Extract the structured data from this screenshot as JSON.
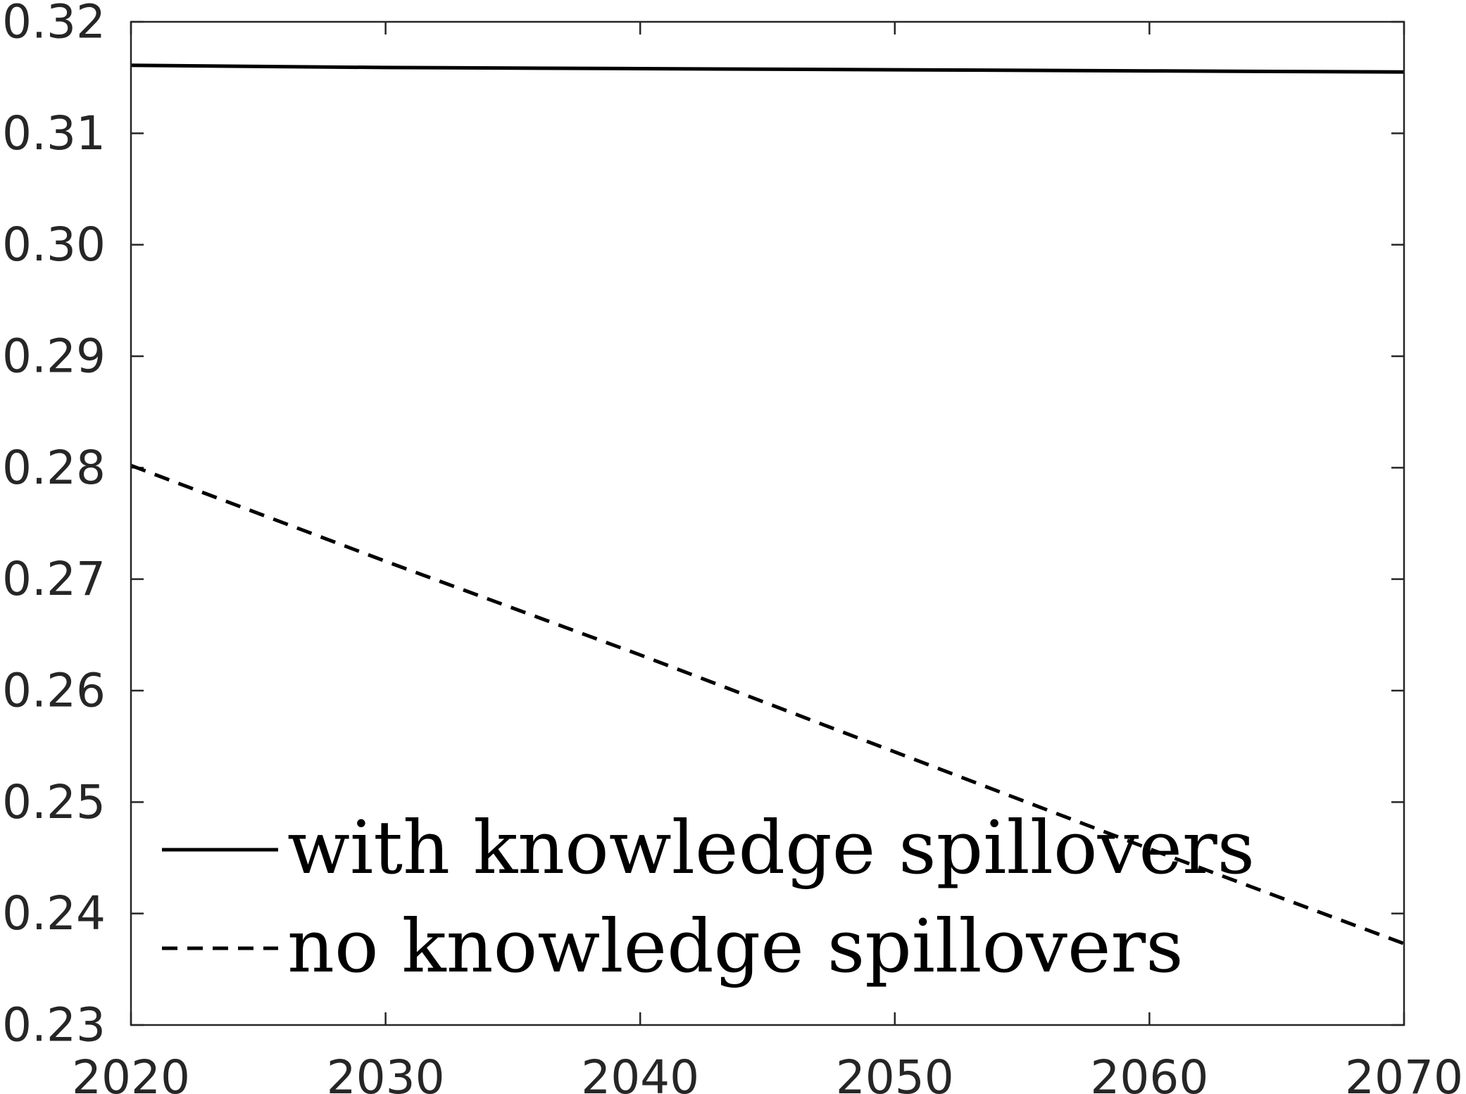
{
  "chart_data": {
    "type": "line",
    "title": "",
    "xlabel": "",
    "ylabel": "",
    "xlim": [
      2020,
      2070
    ],
    "ylim": [
      0.23,
      0.32
    ],
    "x_ticks": [
      "2020",
      "2030",
      "2040",
      "2050",
      "2060",
      "2070"
    ],
    "y_ticks": [
      "0.23",
      "0.24",
      "0.25",
      "0.26",
      "0.27",
      "0.28",
      "0.29",
      "0.30",
      "0.31",
      "0.32"
    ],
    "grid": false,
    "legend_position": "bottom-left",
    "x": [
      2020,
      2030,
      2040,
      2050,
      2060,
      2070
    ],
    "series": [
      {
        "name": "with knowledge spillovers",
        "style": "solid",
        "color": "#000000",
        "values": [
          0.3161,
          0.3159,
          0.3158,
          0.3157,
          0.3156,
          0.3155
        ]
      },
      {
        "name": "no knowledge spillovers",
        "style": "dashed",
        "color": "#000000",
        "values": [
          0.2802,
          0.2716,
          0.2632,
          0.2545,
          0.2458,
          0.2373
        ]
      }
    ]
  }
}
